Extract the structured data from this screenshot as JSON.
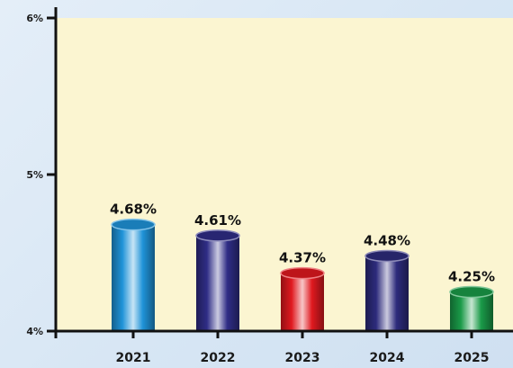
{
  "chart_data": {
    "type": "bar",
    "title": "",
    "xlabel": "",
    "ylabel": "",
    "ylim": [
      4,
      6
    ],
    "y_ticks": [
      {
        "value": 4,
        "label": "4%"
      },
      {
        "value": 5,
        "label": "5%"
      },
      {
        "value": 6,
        "label": "6%"
      }
    ],
    "categories": [
      "2021",
      "2022",
      "2023",
      "2024",
      "2025"
    ],
    "values": [
      4.68,
      4.61,
      4.37,
      4.48,
      4.25
    ],
    "data_labels": [
      "4.68%",
      "4.61%",
      "4.37%",
      "4.48%",
      "4.25%"
    ],
    "colors": [
      "#1f93d8",
      "#2f2d86",
      "#e0191f",
      "#2d2b7c",
      "#1a9a48"
    ],
    "plot_background": "#fbf5d1",
    "grid": false,
    "legend": "none"
  }
}
